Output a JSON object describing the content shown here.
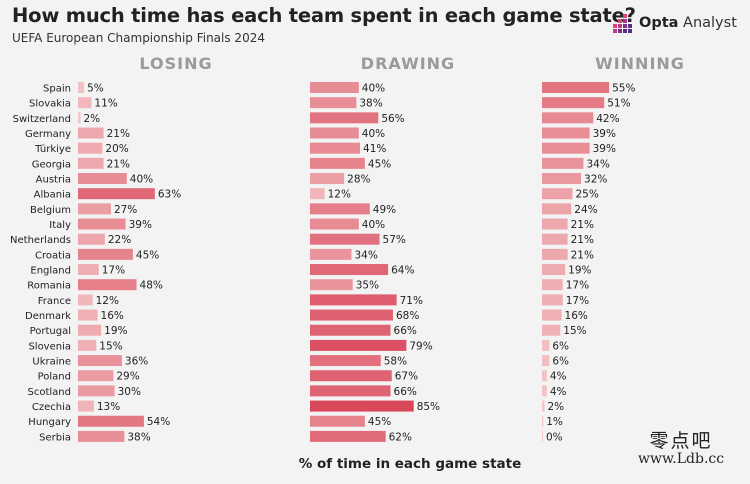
{
  "header": {
    "title": "How much time has each team spent in each game state?",
    "subtitle": "UEFA European Championship Finals 2024",
    "brand_bold": "Opta",
    "brand_light": " Analyst",
    "brand_icon": "opta-bars-logo"
  },
  "footer": {
    "watermark_cn": "零点吧",
    "watermark_url": "www.Ldb.cc"
  },
  "colors": {
    "background": "#f3f3f3",
    "bar_low": "#f4c8c8",
    "bar_high": "#d9475b",
    "header_gray": "#9a9a9a",
    "brand_pink": "#e0447a",
    "brand_purple": "#5a2d82"
  },
  "chart_data": {
    "type": "bar",
    "orientation": "horizontal",
    "layout": "small-multiples",
    "xlabel": "% of time in each game state",
    "value_suffix": "%",
    "categories": [
      "Spain",
      "Slovakia",
      "Switzerland",
      "Germany",
      "Türkiye",
      "Georgia",
      "Austria",
      "Albania",
      "Belgium",
      "Italy",
      "Netherlands",
      "Croatia",
      "England",
      "Romania",
      "France",
      "Denmark",
      "Portugal",
      "Slovenia",
      "Ukraine",
      "Poland",
      "Scotland",
      "Czechia",
      "Hungary",
      "Serbia"
    ],
    "series": [
      {
        "name": "LOSING",
        "values": [
          5,
          11,
          2,
          21,
          20,
          21,
          40,
          63,
          27,
          39,
          22,
          45,
          17,
          48,
          12,
          16,
          19,
          15,
          36,
          29,
          30,
          13,
          54,
          38
        ]
      },
      {
        "name": "DRAWING",
        "values": [
          40,
          38,
          56,
          40,
          41,
          45,
          28,
          12,
          49,
          40,
          57,
          34,
          64,
          35,
          71,
          68,
          66,
          79,
          58,
          67,
          66,
          85,
          45,
          62
        ]
      },
      {
        "name": "WINNING",
        "values": [
          55,
          51,
          42,
          39,
          39,
          34,
          32,
          25,
          24,
          21,
          21,
          21,
          19,
          17,
          17,
          16,
          15,
          6,
          6,
          4,
          4,
          2,
          1,
          0
        ]
      }
    ],
    "xlim": [
      0,
      100
    ],
    "grid": false,
    "legend": "none"
  }
}
